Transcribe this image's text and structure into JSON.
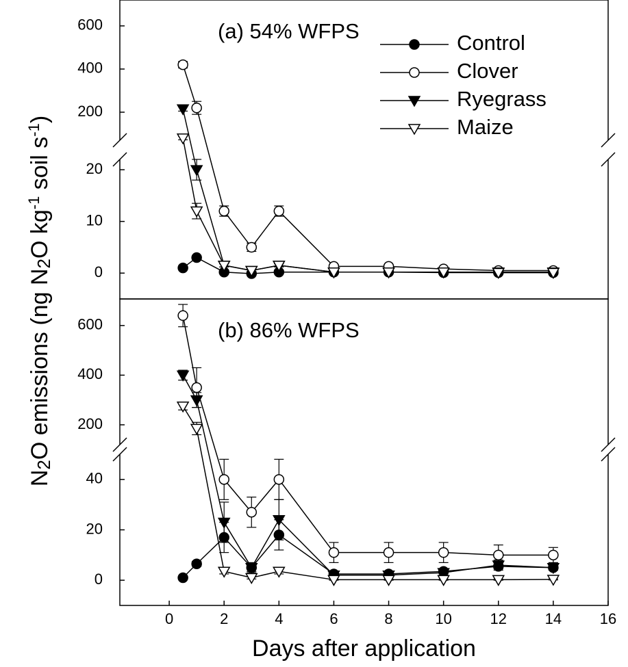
{
  "y_label_parts": [
    "N",
    "2",
    "O emissions (ng N",
    "2",
    "O kg",
    "-1",
    " soil s",
    "-1",
    ")"
  ],
  "chart_data": [
    {
      "type": "line",
      "title": "(a) 54% WFPS",
      "x": [
        0.5,
        1,
        2,
        3,
        4,
        6,
        8,
        10,
        12,
        14
      ],
      "xlim": [
        -1.8,
        16
      ],
      "ylim": [
        -5,
        720
      ],
      "ybreak": [
        22,
        70
      ],
      "yticks": [
        0,
        10,
        20,
        200,
        400,
        600
      ],
      "legend": "upper right",
      "series": [
        {
          "name": "Control",
          "color": "#000000",
          "fill": "#000000",
          "marker": "circle",
          "values": [
            1,
            3,
            0.2,
            -0.1,
            0.2,
            0.2,
            0.2,
            0.1,
            0.1,
            0.1
          ],
          "errors": [
            0.3,
            0.3,
            0.1,
            0.1,
            0.1,
            0.1,
            0.1,
            0.1,
            0.1,
            0.1
          ]
        },
        {
          "name": "Clover",
          "color": "#000000",
          "fill": "#ffffff",
          "marker": "circle",
          "values": [
            420,
            220,
            12,
            5,
            12,
            1.3,
            1.3,
            0.8,
            0.5,
            0.5
          ],
          "errors": [
            15,
            30,
            1,
            0.8,
            1,
            0.2,
            0.2,
            0.2,
            0.2,
            0.2
          ]
        },
        {
          "name": "Ryegrass",
          "color": "#000000",
          "fill": "#000000",
          "marker": "triangle-down",
          "values": [
            215,
            20,
            1.5,
            0.5,
            1.5,
            0.2,
            0.2,
            0.2,
            0.2,
            0.2
          ],
          "errors": [
            10,
            2,
            0.3,
            0.2,
            0.3,
            0.1,
            0.1,
            0.1,
            0.1,
            0.1
          ]
        },
        {
          "name": "Maize",
          "color": "#000000",
          "fill": "#ffffff",
          "marker": "triangle-down",
          "values": [
            80,
            12,
            1.5,
            0.5,
            1.5,
            0.2,
            0.2,
            0.2,
            0.1,
            0.1
          ],
          "errors": [
            8,
            1.5,
            0.3,
            0.2,
            0.3,
            0.1,
            0.1,
            0.1,
            0.1,
            0.1
          ]
        }
      ]
    },
    {
      "type": "line",
      "title": "(b) 86% WFPS",
      "x": [
        0.5,
        1,
        2,
        3,
        4,
        6,
        8,
        10,
        12,
        14
      ],
      "xlim": [
        -1.8,
        16
      ],
      "ylim": [
        -10,
        707
      ],
      "ybreak": [
        50,
        120
      ],
      "yticks": [
        0,
        20,
        40,
        200,
        400,
        600
      ],
      "xticks": [
        0,
        2,
        4,
        6,
        8,
        10,
        12,
        14,
        16
      ],
      "xlabel": "Days after application",
      "series": [
        {
          "name": "Control",
          "color": "#000000",
          "fill": "#000000",
          "marker": "circle",
          "values": [
            1,
            6.5,
            17,
            5,
            18,
            2.5,
            2.5,
            3.5,
            5.5,
            5
          ],
          "errors": [
            0.5,
            1,
            6,
            1.5,
            6,
            1,
            1,
            1,
            1,
            1
          ]
        },
        {
          "name": "Clover",
          "color": "#000000",
          "fill": "#ffffff",
          "marker": "circle",
          "values": [
            640,
            350,
            40,
            27,
            40,
            11,
            11,
            11,
            10,
            10
          ],
          "errors": [
            45,
            80,
            8,
            6,
            8,
            4,
            4,
            4,
            4,
            3
          ]
        },
        {
          "name": "Ryegrass",
          "color": "#000000",
          "fill": "#000000",
          "marker": "triangle-down",
          "values": [
            400,
            300,
            23,
            5,
            24,
            2,
            2,
            3,
            6,
            5
          ],
          "errors": [
            20,
            30,
            8,
            2,
            8,
            1,
            1,
            1,
            2,
            1
          ]
        },
        {
          "name": "Maize",
          "color": "#000000",
          "fill": "#ffffff",
          "marker": "triangle-down",
          "values": [
            275,
            185,
            3.5,
            1,
            3.5,
            0.2,
            0.2,
            0.2,
            0.2,
            0.3
          ],
          "errors": [
            15,
            25,
            1,
            0.5,
            1,
            0.2,
            0.2,
            0.2,
            0.2,
            0.2
          ]
        }
      ]
    }
  ]
}
